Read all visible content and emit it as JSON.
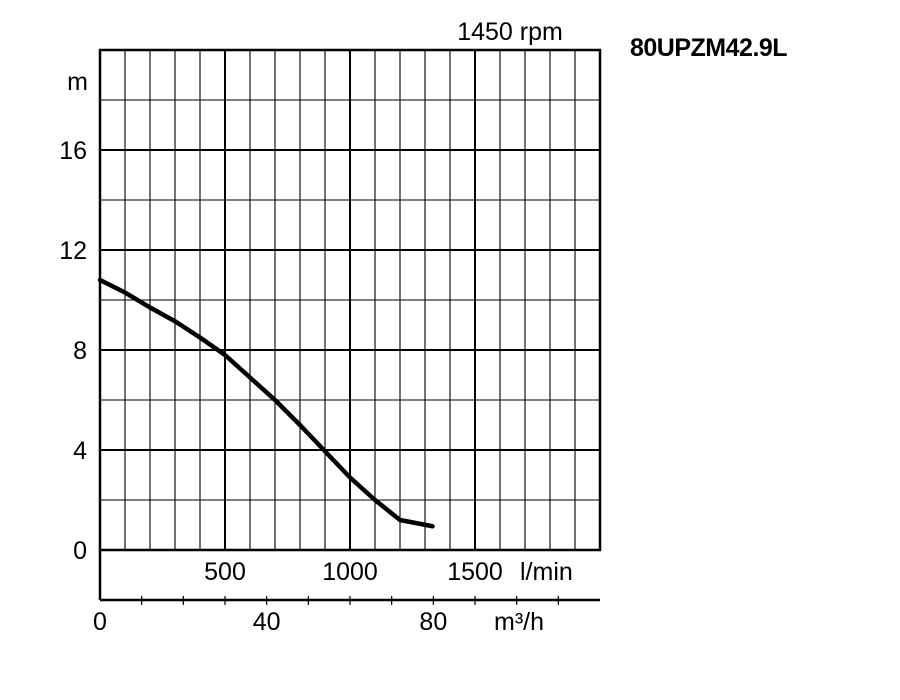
{
  "model_label": "80UPZM42.9L",
  "chart_data": {
    "type": "line",
    "title": "1450 rpm",
    "ylabel": "m",
    "xlabel_lmin": "l/min",
    "xlabel_m3h": "m³/h",
    "ylim": [
      0,
      20
    ],
    "xlim_lmin": [
      0,
      2000
    ],
    "xlim_m3h": [
      0,
      120
    ],
    "y_ticks": [
      {
        "value": 0,
        "label": "0"
      },
      {
        "value": 4,
        "label": "4"
      },
      {
        "value": 8,
        "label": "8"
      },
      {
        "value": 12,
        "label": "12"
      },
      {
        "value": 16,
        "label": "16"
      }
    ],
    "x_ticks_lmin": [
      {
        "value": 500,
        "label": "500"
      },
      {
        "value": 1000,
        "label": "1000"
      },
      {
        "value": 1500,
        "label": "1500"
      }
    ],
    "x_ticks_m3h": [
      {
        "value": 0,
        "label": "0"
      },
      {
        "value": 40,
        "label": "40"
      },
      {
        "value": 80,
        "label": "80"
      }
    ],
    "grid": true,
    "series": [
      {
        "color": "#000000",
        "x_lmin": [
          0,
          100,
          200,
          300,
          400,
          500,
          600,
          700,
          800,
          900,
          1000,
          1100,
          1200,
          1330
        ],
        "y_m": [
          10.8,
          10.3,
          9.7,
          9.15,
          8.5,
          7.8,
          6.9,
          6.0,
          5.0,
          3.95,
          2.9,
          2.0,
          1.2,
          0.95
        ]
      }
    ]
  }
}
